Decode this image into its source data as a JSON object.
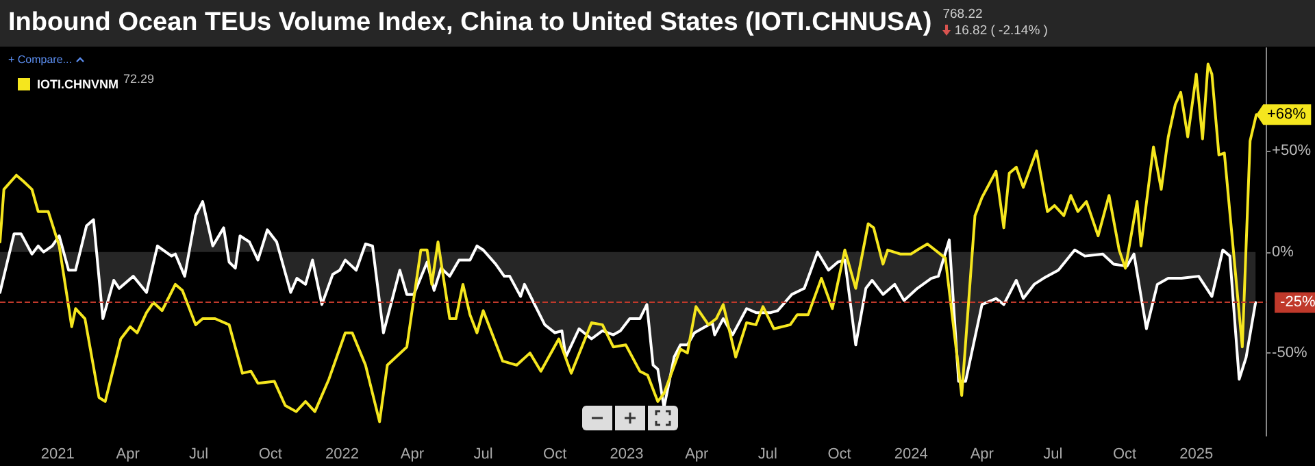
{
  "chart_data": {
    "type": "line",
    "title": "Inbound Ocean TEUs Volume Index, China to United States (IOTI.CHNUSA)",
    "annotations": [
      "768.22",
      "16.82 ( -2.14% )",
      "+ Compare...",
      "72.29",
      {
        "text": "+68%",
        "x": "2025-03-19",
        "y": 68
      }
    ],
    "xlim": [
      "2020-10-19",
      "2025-04-01"
    ],
    "xticks": [
      {
        "value": "2021-01-01",
        "label": "2021"
      },
      {
        "value": "2021-04-01",
        "label": "Apr"
      },
      {
        "value": "2021-07-01",
        "label": "Jul"
      },
      {
        "value": "2021-10-01",
        "label": "Oct"
      },
      {
        "value": "2022-01-01",
        "label": "2022"
      },
      {
        "value": "2022-04-01",
        "label": "Apr"
      },
      {
        "value": "2022-07-01",
        "label": "Jul"
      },
      {
        "value": "2022-10-01",
        "label": "Oct"
      },
      {
        "value": "2023-01-01",
        "label": "2023"
      },
      {
        "value": "2023-04-01",
        "label": "Apr"
      },
      {
        "value": "2023-07-01",
        "label": "Jul"
      },
      {
        "value": "2023-10-01",
        "label": "Oct"
      },
      {
        "value": "2024-01-01",
        "label": "2024"
      },
      {
        "value": "2024-04-01",
        "label": "Apr"
      },
      {
        "value": "2024-07-01",
        "label": "Jul"
      },
      {
        "value": "2024-10-01",
        "label": "Oct"
      },
      {
        "value": "2025-01-01",
        "label": "2025"
      }
    ],
    "ylim": [
      -91,
      101
    ],
    "yticks": [
      {
        "value": 50,
        "label": "+50%"
      },
      {
        "value": 0,
        "label": "0%"
      },
      {
        "value": -50,
        "label": "-50%"
      }
    ],
    "ref_lines": [
      {
        "axis": "y",
        "value": -25,
        "label": "-25%",
        "color": "#c0392b",
        "line_style": "dashed"
      }
    ],
    "legend": "top left",
    "grid": false,
    "marker": "none",
    "line_style": "solid",
    "series": [
      {
        "type": "area",
        "color": "#ffffff",
        "x": [
          "2020-10-19",
          "2020-11-06",
          "2020-11-15",
          "2020-11-29",
          "2020-12-07",
          "2020-12-14",
          "2020-12-25",
          "2021-01-03",
          "2021-01-15",
          "2021-01-24",
          "2021-02-07",
          "2021-02-16",
          "2021-02-28",
          "2021-03-14",
          "2021-03-21",
          "2021-04-08",
          "2021-04-25",
          "2021-05-09",
          "2021-05-27",
          "2021-06-01",
          "2021-06-13",
          "2021-06-27",
          "2021-07-06",
          "2021-07-19",
          "2021-08-02",
          "2021-08-09",
          "2021-08-17",
          "2021-08-23",
          "2021-09-04",
          "2021-09-15",
          "2021-09-27",
          "2021-10-09",
          "2021-10-27",
          "2021-11-04",
          "2021-11-15",
          "2021-11-24",
          "2021-12-06",
          "2021-12-20",
          "2021-12-29",
          "2022-01-05",
          "2022-01-19",
          "2022-01-31",
          "2022-02-09",
          "2022-02-23",
          "2022-03-16",
          "2022-03-25",
          "2022-04-03",
          "2022-04-20",
          "2022-04-29",
          "2022-05-08",
          "2022-05-19",
          "2022-05-31",
          "2022-06-14",
          "2022-06-23",
          "2022-07-01",
          "2022-07-17",
          "2022-07-28",
          "2022-08-04",
          "2022-08-18",
          "2022-08-23",
          "2022-09-18",
          "2022-10-01",
          "2022-10-10",
          "2022-10-15",
          "2022-11-01",
          "2022-11-17",
          "2022-12-01",
          "2022-12-15",
          "2022-12-24",
          "2023-01-05",
          "2023-01-18",
          "2023-01-27",
          "2023-02-04",
          "2023-02-10",
          "2023-02-18",
          "2023-03-03",
          "2023-03-11",
          "2023-03-20",
          "2023-03-29",
          "2023-04-21",
          "2023-04-24",
          "2023-05-05",
          "2023-05-17",
          "2023-06-04",
          "2023-06-16",
          "2023-07-05",
          "2023-07-14",
          "2023-08-01",
          "2023-08-17",
          "2023-09-03",
          "2023-09-17",
          "2023-09-29",
          "2023-10-08",
          "2023-10-22",
          "2023-11-04",
          "2023-11-12",
          "2023-11-26",
          "2023-12-11",
          "2023-12-23",
          "2024-01-09",
          "2024-01-27",
          "2024-02-05",
          "2024-02-19",
          "2024-03-02",
          "2024-03-11",
          "2024-04-01",
          "2024-04-19",
          "2024-04-29",
          "2024-05-15",
          "2024-05-24",
          "2024-06-07",
          "2024-06-19",
          "2024-07-08",
          "2024-07-29",
          "2024-08-11",
          "2024-09-03",
          "2024-09-17",
          "2024-10-04",
          "2024-10-13",
          "2024-10-29",
          "2024-11-12",
          "2024-11-26",
          "2024-12-13",
          "2025-01-04",
          "2025-01-21",
          "2025-02-04",
          "2025-02-13",
          "2025-02-25",
          "2025-03-06",
          "2025-03-18"
        ],
        "values": [
          -20,
          9,
          9,
          -1,
          3,
          0,
          3,
          8,
          -9,
          -9,
          13,
          16,
          -33,
          -14,
          -18,
          -12,
          -20,
          3,
          -2,
          -1,
          -12,
          18,
          25,
          3,
          12,
          -5,
          -8,
          8,
          5,
          -4,
          11,
          5,
          -20,
          -13,
          -16,
          -4,
          -26,
          -11,
          -9,
          -4,
          -9,
          4,
          3,
          -40,
          -9,
          -21,
          -21,
          -5,
          -19,
          -8,
          -12,
          -4,
          -4,
          3,
          1,
          -6,
          -12,
          -12,
          -22,
          -16,
          -36,
          -40,
          -39,
          -52,
          -38,
          -43,
          -39,
          -41,
          -39,
          -33,
          -33,
          -26,
          -56,
          -58,
          -77,
          -52,
          -46,
          -46,
          -40,
          -35,
          -41,
          -33,
          -41,
          -28,
          -30,
          -30,
          -29,
          -21,
          -18,
          0,
          -9,
          -5,
          -4,
          -46,
          -18,
          -14,
          -21,
          -16,
          -24,
          -18,
          -13,
          -12,
          6,
          -64,
          -64,
          -26,
          -23,
          -26,
          -14,
          -23,
          -16,
          -13,
          -9,
          1,
          -2,
          -1,
          -6,
          -7,
          -1,
          -38,
          -16,
          -13,
          -13,
          -12,
          -22,
          1,
          -2,
          -63,
          -52,
          -25
        ]
      },
      {
        "type": "line",
        "name": "IOTI.CHNVNM",
        "color": "#f5e61e",
        "x": [
          "2020-10-19",
          "2020-10-24",
          "2020-11-09",
          "2020-11-18",
          "2020-11-29",
          "2020-12-07",
          "2020-12-20",
          "2021-01-03",
          "2021-01-19",
          "2021-01-24",
          "2021-02-05",
          "2021-02-23",
          "2021-03-03",
          "2021-03-23",
          "2021-04-04",
          "2021-04-13",
          "2021-04-25",
          "2021-05-04",
          "2021-05-15",
          "2021-06-01",
          "2021-06-10",
          "2021-06-27",
          "2021-07-06",
          "2021-07-22",
          "2021-08-09",
          "2021-08-26",
          "2021-09-06",
          "2021-09-15",
          "2021-10-06",
          "2021-10-20",
          "2021-11-03",
          "2021-11-15",
          "2021-11-27",
          "2021-12-15",
          "2022-01-05",
          "2022-01-14",
          "2022-01-31",
          "2022-02-18",
          "2022-02-28",
          "2022-03-25",
          "2022-04-12",
          "2022-04-20",
          "2022-04-26",
          "2022-05-04",
          "2022-05-19",
          "2022-05-27",
          "2022-06-05",
          "2022-06-14",
          "2022-06-23",
          "2022-07-01",
          "2022-07-26",
          "2022-08-13",
          "2022-08-30",
          "2022-09-13",
          "2022-10-06",
          "2022-10-22",
          "2022-11-17",
          "2022-12-01",
          "2022-12-15",
          "2022-12-31",
          "2023-01-18",
          "2023-01-28",
          "2023-02-10",
          "2023-02-18",
          "2023-03-11",
          "2023-03-20",
          "2023-03-31",
          "2023-04-16",
          "2023-04-26",
          "2023-05-05",
          "2023-05-21",
          "2023-06-04",
          "2023-06-16",
          "2023-06-25",
          "2023-07-09",
          "2023-07-30",
          "2023-08-08",
          "2023-08-22",
          "2023-09-08",
          "2023-09-22",
          "2023-10-08",
          "2023-10-22",
          "2023-11-07",
          "2023-11-14",
          "2023-11-26",
          "2023-12-02",
          "2023-12-18",
          "2024-01-01",
          "2024-01-09",
          "2024-01-22",
          "2024-02-14",
          "2024-03-06",
          "2024-03-23",
          "2024-04-01",
          "2024-04-19",
          "2024-04-29",
          "2024-05-06",
          "2024-05-15",
          "2024-05-24",
          "2024-06-10",
          "2024-06-24",
          "2024-07-03",
          "2024-07-15",
          "2024-07-24",
          "2024-08-02",
          "2024-08-13",
          "2024-08-28",
          "2024-09-11",
          "2024-09-24",
          "2024-10-02",
          "2024-10-17",
          "2024-10-22",
          "2024-11-07",
          "2024-11-17",
          "2024-11-26",
          "2024-12-05",
          "2024-12-12",
          "2024-12-21",
          "2025-01-01",
          "2025-01-09",
          "2025-01-16",
          "2025-01-21",
          "2025-01-30",
          "2025-02-06",
          "2025-03-01",
          "2025-03-11",
          "2025-03-19"
        ],
        "values": [
          5,
          31,
          38,
          35,
          31,
          20,
          20,
          3,
          -37,
          -28,
          -33,
          -72,
          -74,
          -43,
          -37,
          -40,
          -30,
          -25,
          -29,
          -16,
          -19,
          -36,
          -33,
          -33,
          -36,
          -60,
          -59,
          -65,
          -64,
          -76,
          -79,
          -74,
          -79,
          -63,
          -40,
          -40,
          -56,
          -84,
          -56,
          -47,
          1,
          1,
          -16,
          5,
          -33,
          -33,
          -16,
          -31,
          -40,
          -29,
          -54,
          -56,
          -50,
          -59,
          -43,
          -60,
          -35,
          -36,
          -47,
          -46,
          -59,
          -61,
          -74,
          -70,
          -48,
          -50,
          -27,
          -36,
          -33,
          -26,
          -52,
          -35,
          -36,
          -27,
          -38,
          -36,
          -31,
          -31,
          -13,
          -28,
          1,
          -18,
          14,
          12,
          -6,
          1,
          -1,
          -1,
          1,
          4,
          -3,
          -71,
          18,
          27,
          40,
          12,
          39,
          42,
          32,
          50,
          20,
          23,
          18,
          28,
          20,
          25,
          8,
          28,
          1,
          -8,
          25,
          3,
          52,
          31,
          57,
          73,
          79,
          57,
          88,
          56,
          93,
          88,
          48,
          49,
          -47,
          55,
          68
        ]
      }
    ]
  }
}
